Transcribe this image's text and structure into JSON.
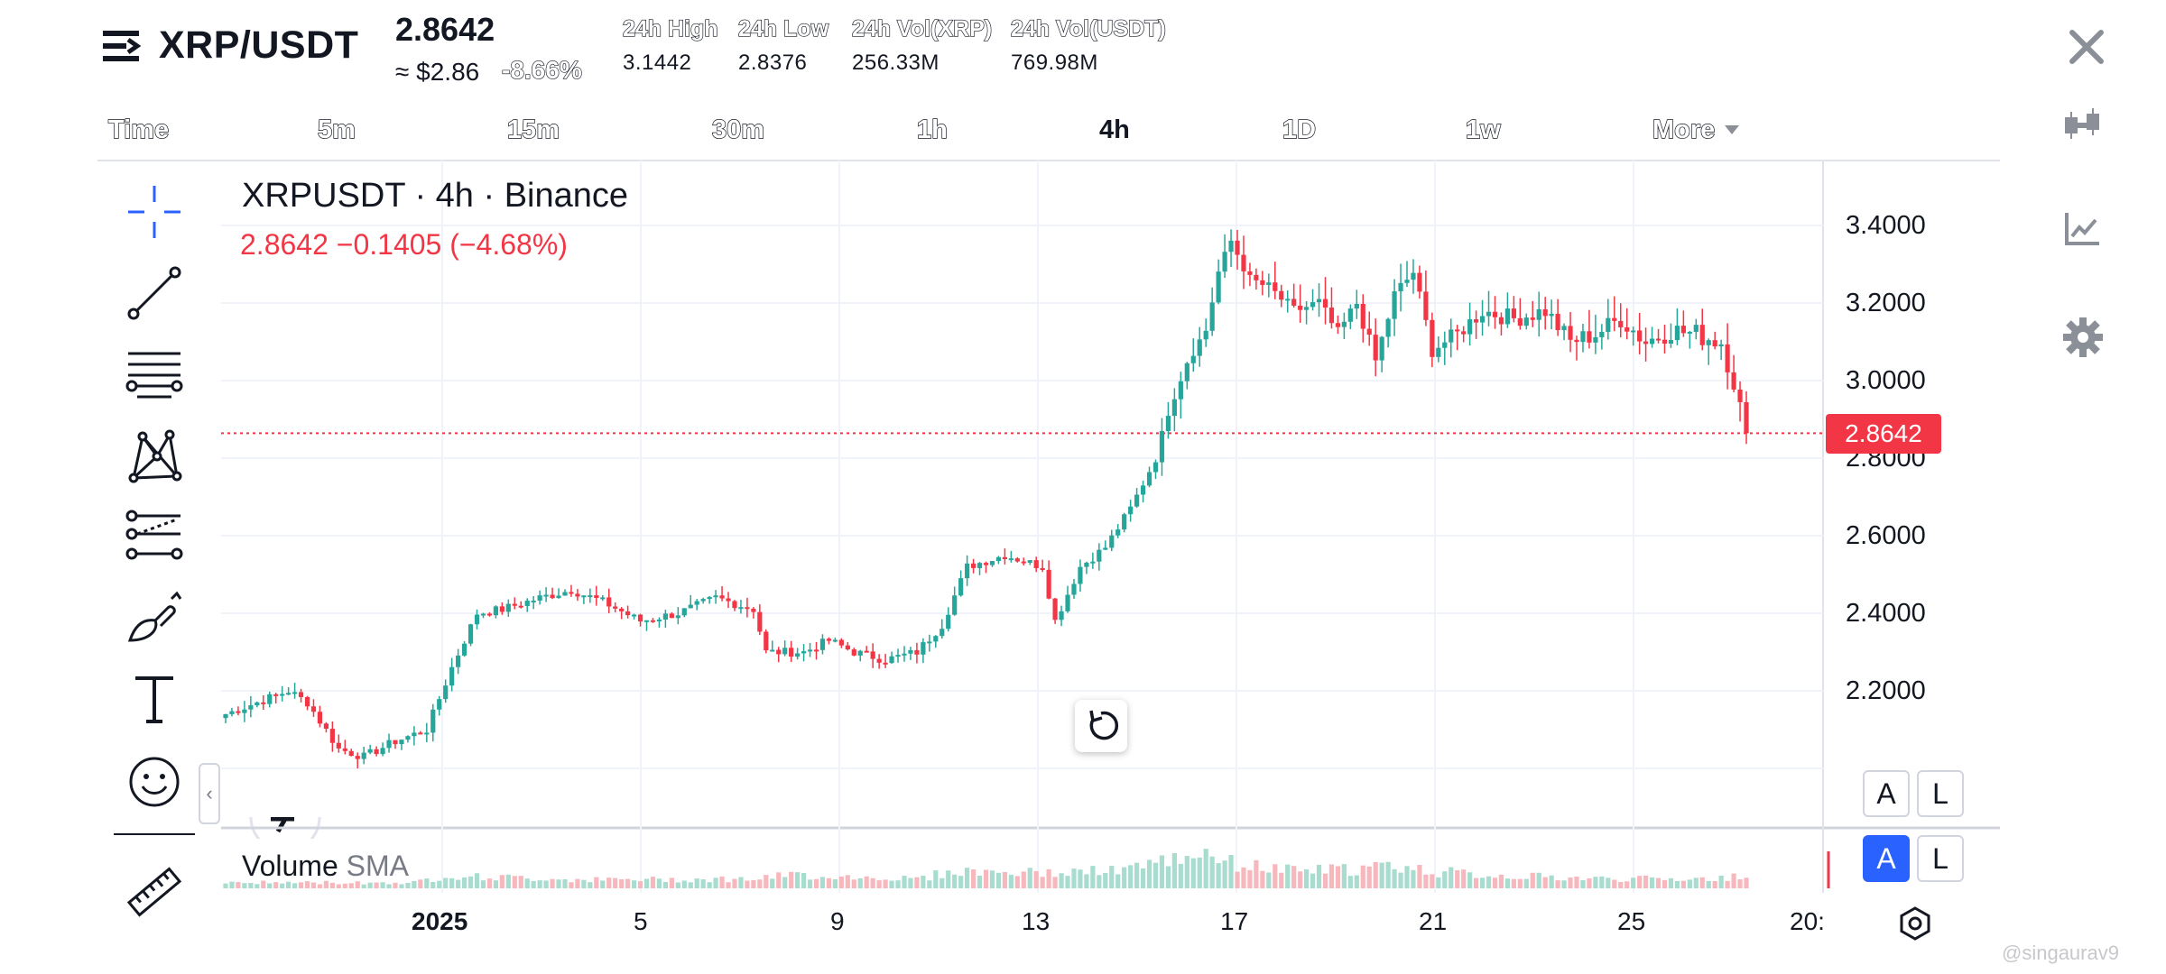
{
  "header": {
    "pair": "XRP/USDT",
    "last_price": "2.8642",
    "usd_approx": "≈ $2.86",
    "pct_change": "-8.66%",
    "stats": [
      {
        "label": "24h High",
        "value": "3.1442"
      },
      {
        "label": "24h Low",
        "value": "2.8376"
      },
      {
        "label": "24h Vol(XRP)",
        "value": "256.33M"
      },
      {
        "label": "24h Vol(USDT)",
        "value": "769.98M"
      }
    ]
  },
  "intervals": [
    "Time",
    "5m",
    "15m",
    "30m",
    "1h",
    "4h",
    "1D",
    "1w",
    "More"
  ],
  "active_interval": "4h",
  "chart": {
    "legend_title": "XRPUSDT · 4h · Binance",
    "legend_values": "2.8642  −0.1405 (−4.68%)",
    "current_price_tag": "2.8642",
    "volume_label": "Volume",
    "volume_sma": "SMA",
    "scale_auto": "A",
    "scale_log": "L",
    "up_color": "#26a69a",
    "down_color": "#f23645"
  },
  "chart_data": {
    "type": "candlestick",
    "y_ticks": [
      "3.4000",
      "3.2000",
      "3.0000",
      "2.8000",
      "2.6000",
      "2.4000",
      "2.2000"
    ],
    "x_ticks": [
      "2025",
      "5",
      "9",
      "13",
      "17",
      "21",
      "25",
      "20:"
    ],
    "ylim": [
      2.0,
      3.55
    ],
    "last_price": 2.8642,
    "grid": true,
    "close_path": [
      [
        0,
        2.14
      ],
      [
        5,
        2.17
      ],
      [
        10,
        2.2
      ],
      [
        13,
        2.17
      ],
      [
        18,
        2.05
      ],
      [
        22,
        2.03
      ],
      [
        27,
        2.07
      ],
      [
        32,
        2.1
      ],
      [
        36,
        2.26
      ],
      [
        40,
        2.4
      ],
      [
        44,
        2.41
      ],
      [
        50,
        2.44
      ],
      [
        55,
        2.46
      ],
      [
        60,
        2.43
      ],
      [
        66,
        2.38
      ],
      [
        72,
        2.4
      ],
      [
        78,
        2.44
      ],
      [
        84,
        2.41
      ],
      [
        86,
        2.3
      ],
      [
        92,
        2.3
      ],
      [
        96,
        2.33
      ],
      [
        100,
        2.3
      ],
      [
        105,
        2.28
      ],
      [
        110,
        2.3
      ],
      [
        114,
        2.37
      ],
      [
        118,
        2.52
      ],
      [
        124,
        2.55
      ],
      [
        130,
        2.52
      ],
      [
        132,
        2.38
      ],
      [
        136,
        2.52
      ],
      [
        140,
        2.57
      ],
      [
        144,
        2.67
      ],
      [
        148,
        2.8
      ],
      [
        150,
        2.92
      ],
      [
        153,
        3.05
      ],
      [
        156,
        3.13
      ],
      [
        158,
        3.28
      ],
      [
        160,
        3.36
      ],
      [
        163,
        3.26
      ],
      [
        166,
        3.24
      ],
      [
        170,
        3.18
      ],
      [
        174,
        3.2
      ],
      [
        177,
        3.12
      ],
      [
        180,
        3.2
      ],
      [
        183,
        3.05
      ],
      [
        186,
        3.22
      ],
      [
        189,
        3.28
      ],
      [
        192,
        3.08
      ],
      [
        196,
        3.12
      ],
      [
        200,
        3.18
      ],
      [
        205,
        3.16
      ],
      [
        210,
        3.18
      ],
      [
        214,
        3.1
      ],
      [
        218,
        3.12
      ],
      [
        222,
        3.16
      ],
      [
        226,
        3.1
      ],
      [
        230,
        3.13
      ],
      [
        234,
        3.12
      ],
      [
        238,
        3.1
      ],
      [
        240,
        3.0
      ],
      [
        242,
        2.86
      ]
    ],
    "volume_profile": [
      [
        0,
        0.15
      ],
      [
        30,
        0.15
      ],
      [
        36,
        0.35
      ],
      [
        40,
        0.3
      ],
      [
        60,
        0.22
      ],
      [
        85,
        0.25
      ],
      [
        90,
        0.35
      ],
      [
        110,
        0.25
      ],
      [
        116,
        0.45
      ],
      [
        130,
        0.4
      ],
      [
        140,
        0.45
      ],
      [
        146,
        0.55
      ],
      [
        150,
        0.75
      ],
      [
        154,
        0.9
      ],
      [
        156,
        1.0
      ],
      [
        160,
        0.65
      ],
      [
        170,
        0.45
      ],
      [
        180,
        0.5
      ],
      [
        186,
        0.6
      ],
      [
        192,
        0.45
      ],
      [
        200,
        0.35
      ],
      [
        220,
        0.25
      ],
      [
        238,
        0.25
      ],
      [
        242,
        0.4
      ]
    ]
  },
  "watermark": "@singaurav9"
}
